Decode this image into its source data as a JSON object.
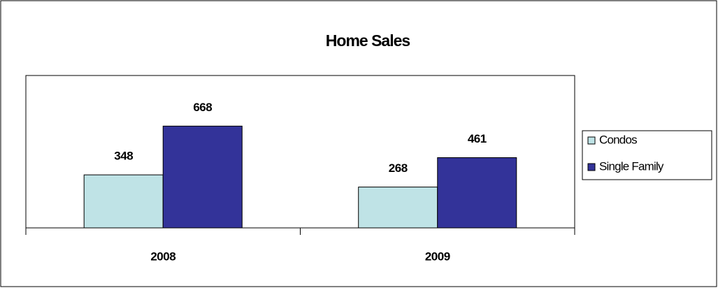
{
  "chart_data": {
    "type": "bar",
    "title": "Home Sales",
    "categories": [
      "2008",
      "2009"
    ],
    "series": [
      {
        "name": "Condos",
        "color": "#bfe3e6",
        "values": [
          348,
          268
        ]
      },
      {
        "name": "Single Family",
        "color": "#333399",
        "values": [
          668,
          461
        ]
      }
    ],
    "ylim": [
      0,
      1000
    ],
    "legend": "right"
  }
}
